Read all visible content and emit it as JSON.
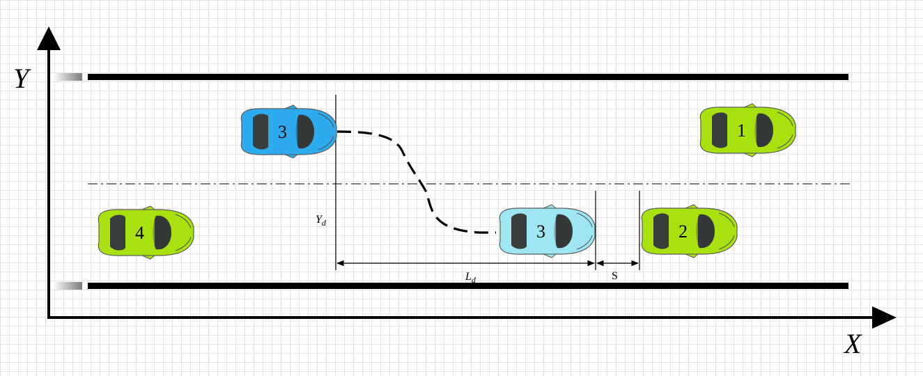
{
  "axes": {
    "x_label": "X",
    "y_label": "Y"
  },
  "dimensions": {
    "yd_main": "Y",
    "yd_sub": "d",
    "ld_main": "L",
    "ld_sub": "d",
    "s": "S"
  },
  "cars": [
    {
      "id": "car-1",
      "number": "1",
      "color": "#a8e010",
      "role": "target-lane-front"
    },
    {
      "id": "car-2",
      "number": "2",
      "color": "#a8e010",
      "role": "original-lane-front"
    },
    {
      "id": "car-3-start",
      "number": "3",
      "color": "#2eaaee",
      "role": "lane-changing-vehicle-start"
    },
    {
      "id": "car-3-end",
      "number": "3",
      "color": "#9ee6f2",
      "role": "lane-changing-vehicle-end"
    },
    {
      "id": "car-4",
      "number": "4",
      "color": "#a8e010",
      "role": "rear-vehicle"
    }
  ],
  "colors": {
    "road_edge": "#000000",
    "lane_divider": "#333333",
    "trajectory": "#000000",
    "grid": "#e4e4e4"
  }
}
